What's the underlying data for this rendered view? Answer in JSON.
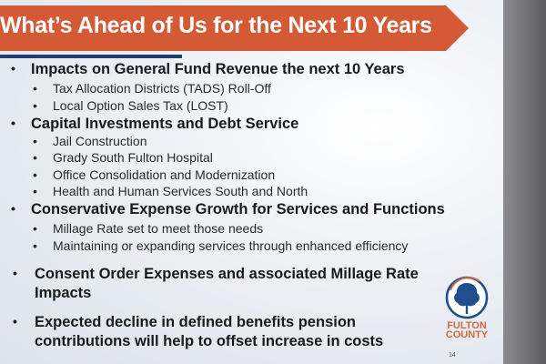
{
  "slide": {
    "title": "What’s Ahead of Us for the Next 10 Years",
    "bullets": [
      {
        "text": "Impacts on General Fund Revenue the next 10 Years",
        "sub": [
          "Tax Allocation Districts (TADS) Roll-Off",
          "Local Option Sales Tax (LOST)"
        ]
      },
      {
        "text": "Capital Investments and Debt Service",
        "sub": [
          "Jail Construction",
          "Grady South Fulton Hospital",
          "Office Consolidation and Modernization",
          "Health and Human Services South and North"
        ]
      },
      {
        "text": "Conservative Expense Growth for Services and Functions",
        "sub": [
          "Millage Rate set to meet those needs",
          "Maintaining or expanding services through enhanced efficiency"
        ]
      },
      {
        "line1": "Consent Order Expenses and associated Millage Rate",
        "line2": "Impacts"
      },
      {
        "line1": "Expected decline in defined benefits pension",
        "line2": "contributions will help to offset increase in costs"
      }
    ],
    "logo": {
      "line1": "FULTON",
      "line2": "COUNTY"
    },
    "page_number": "14",
    "colors": {
      "banner": "#d45a36",
      "rule": "#1f3e6e",
      "logo_blue": "#1f4f8f",
      "logo_orange": "#d0693f"
    }
  }
}
